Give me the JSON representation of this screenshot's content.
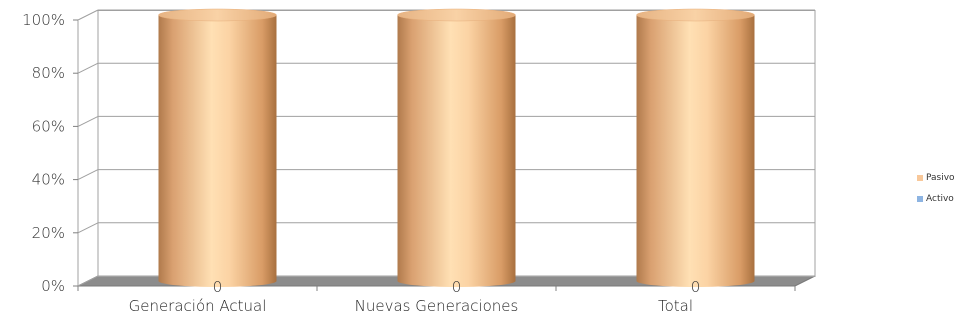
{
  "chart_data": {
    "type": "bar",
    "stacked": true,
    "percent": true,
    "style": "3d-cylinder",
    "categories": [
      "Generación Actual",
      "Nuevas Generaciones",
      "Total"
    ],
    "series": [
      {
        "name": "Activo",
        "values": [
          0,
          0,
          0
        ],
        "color": "#8db4e2"
      },
      {
        "name": "Pasivo",
        "values": [
          100,
          100,
          100
        ],
        "color": "#f8c89a"
      }
    ],
    "data_labels": [
      "0",
      "0",
      "0"
    ],
    "y_ticks": [
      "0%",
      "20%",
      "40%",
      "60%",
      "80%",
      "100%"
    ],
    "ylim": [
      0,
      100
    ],
    "grid": true,
    "legend_position": "right"
  }
}
